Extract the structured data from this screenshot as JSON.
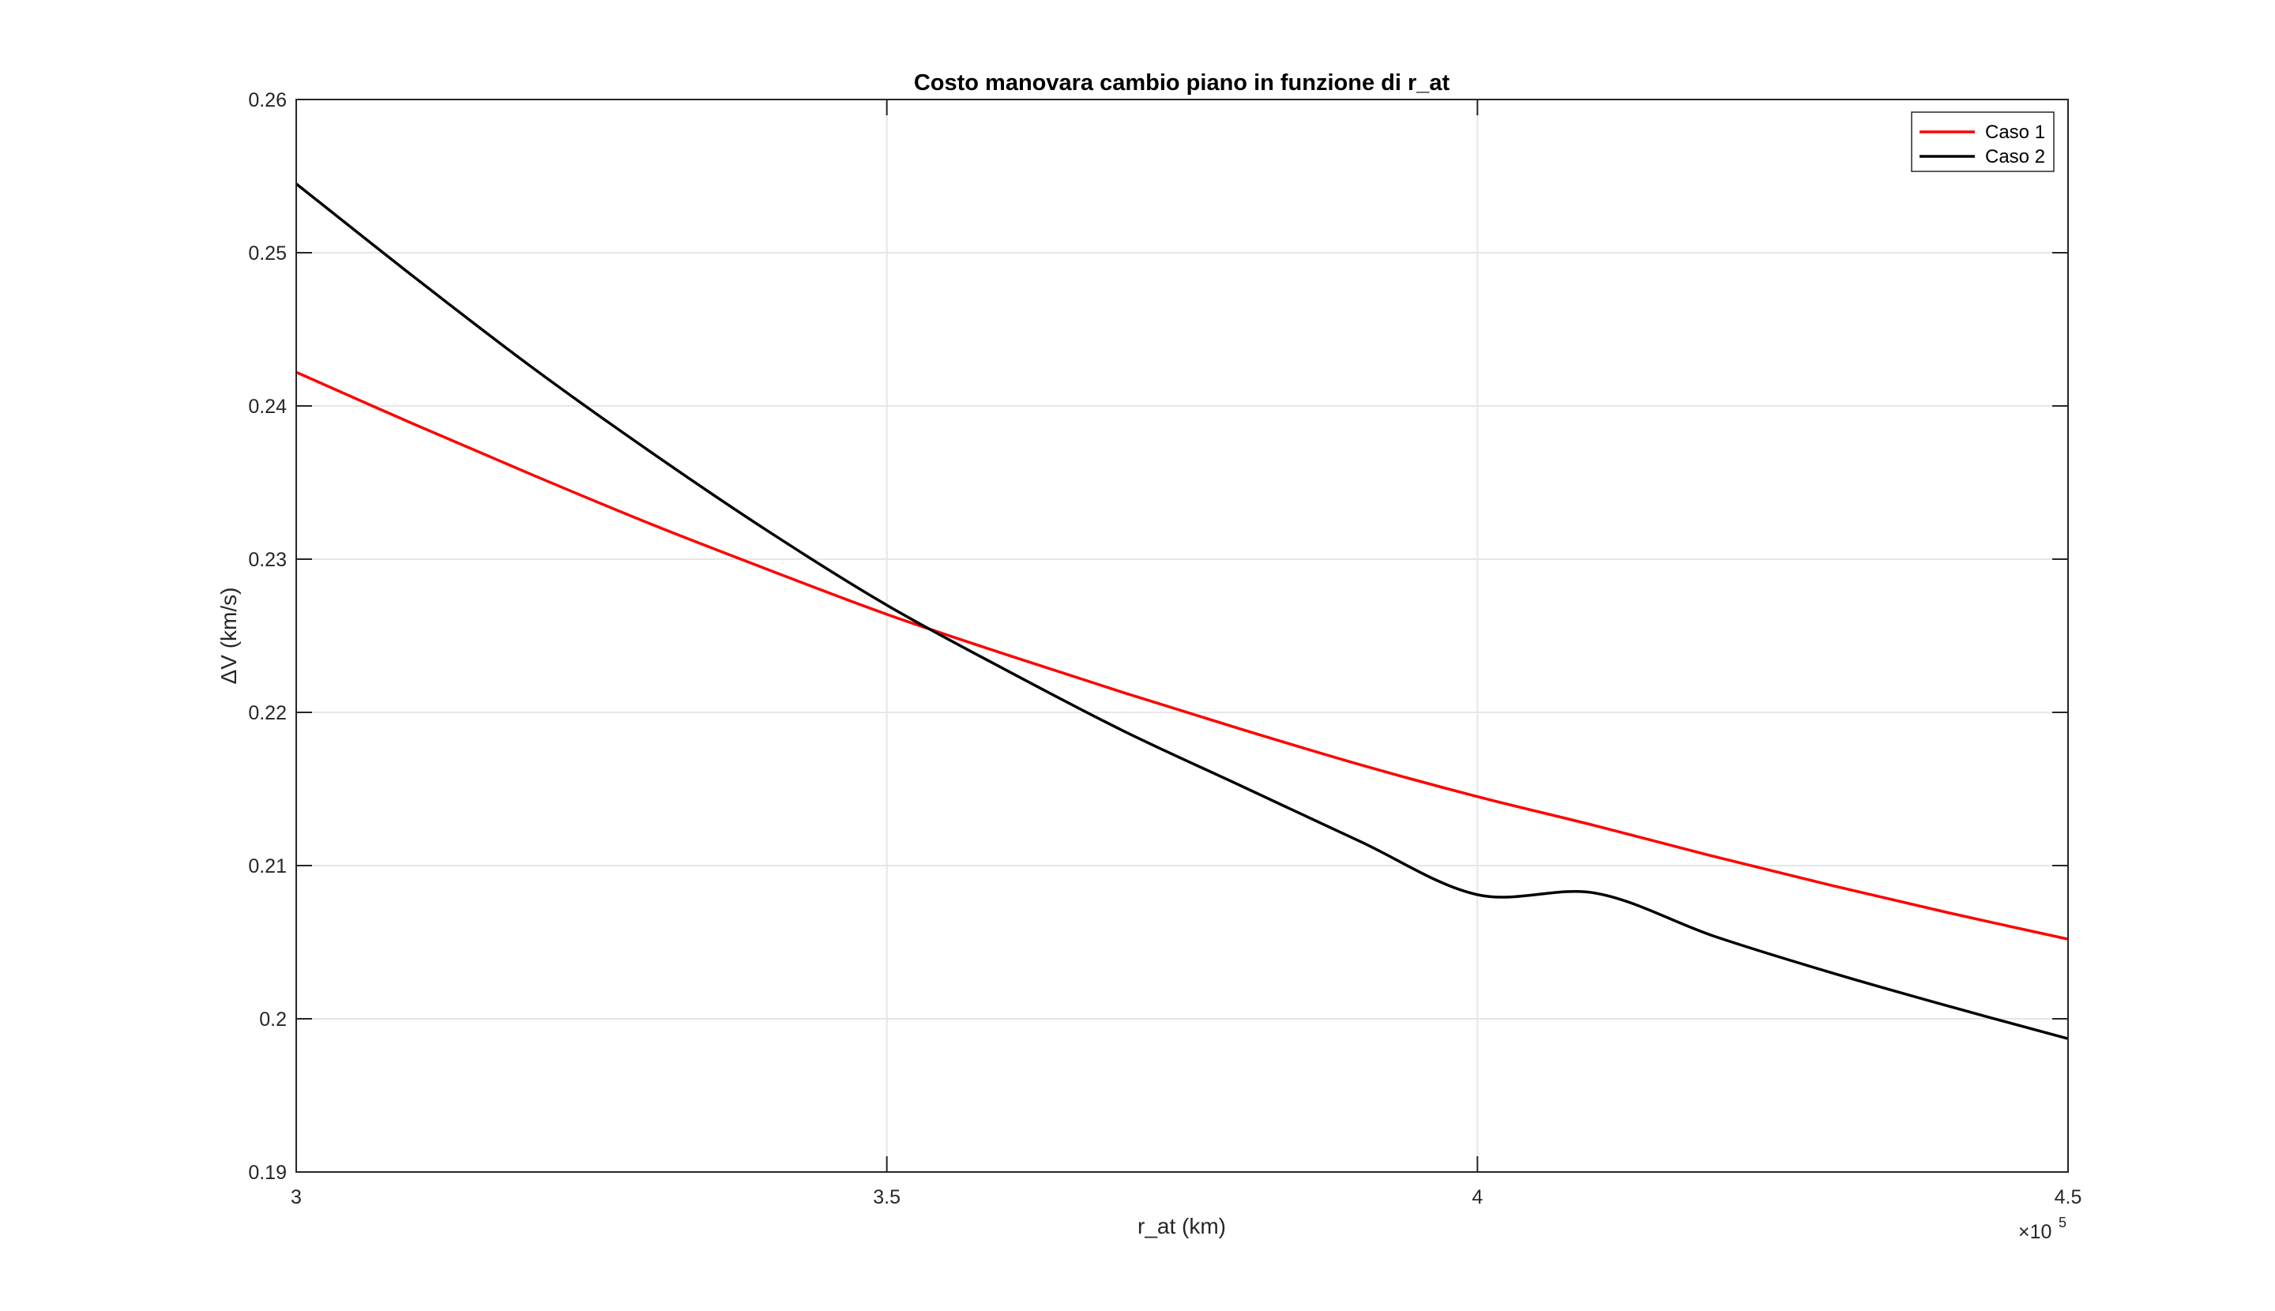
{
  "chart_data": {
    "type": "line",
    "title": "Costo manovara cambio piano in funzione di r_at",
    "xlabel": "r_at (km)",
    "ylabel": "ΔV (km/s)",
    "x_multiplier": "×10",
    "x_multiplier_exp": "5",
    "xlim": [
      3,
      4.5
    ],
    "ylim": [
      0.19,
      0.26
    ],
    "xticks": [
      3,
      3.5,
      4,
      4.5
    ],
    "xtick_labels": [
      "3",
      "3.5",
      "4",
      "4.5"
    ],
    "yticks": [
      0.19,
      0.2,
      0.21,
      0.22,
      0.23,
      0.24,
      0.25,
      0.26
    ],
    "ytick_labels": [
      "0.19",
      "0.2",
      "0.21",
      "0.22",
      "0.23",
      "0.24",
      "0.25",
      "0.26"
    ],
    "grid": true,
    "legend_position": "top-right",
    "series": [
      {
        "name": "Caso 1",
        "color": "#ff0000",
        "x": [
          3.0,
          3.1,
          3.2,
          3.3,
          3.4,
          3.5,
          3.6,
          3.7,
          3.8,
          3.9,
          4.0,
          4.1,
          4.2,
          4.3,
          4.4,
          4.5
        ],
        "y": [
          0.2422,
          0.2388,
          0.2355,
          0.2323,
          0.2293,
          0.2264,
          0.2238,
          0.2213,
          0.2189,
          0.2166,
          0.2145,
          0.2126,
          0.2106,
          0.2087,
          0.2069,
          0.2052
        ]
      },
      {
        "name": "Caso 2",
        "color": "#000000",
        "x": [
          3.0,
          3.1,
          3.2,
          3.3,
          3.4,
          3.5,
          3.6,
          3.7,
          3.8,
          3.9,
          4.0,
          4.1,
          4.2,
          4.3,
          4.4,
          4.5
        ],
        "y": [
          0.2545,
          0.2484,
          0.2425,
          0.237,
          0.2318,
          0.227,
          0.2228,
          0.2188,
          0.2152,
          0.2116,
          0.2081,
          0.2082,
          0.2054,
          0.203,
          0.2008,
          0.1987
        ]
      }
    ]
  }
}
